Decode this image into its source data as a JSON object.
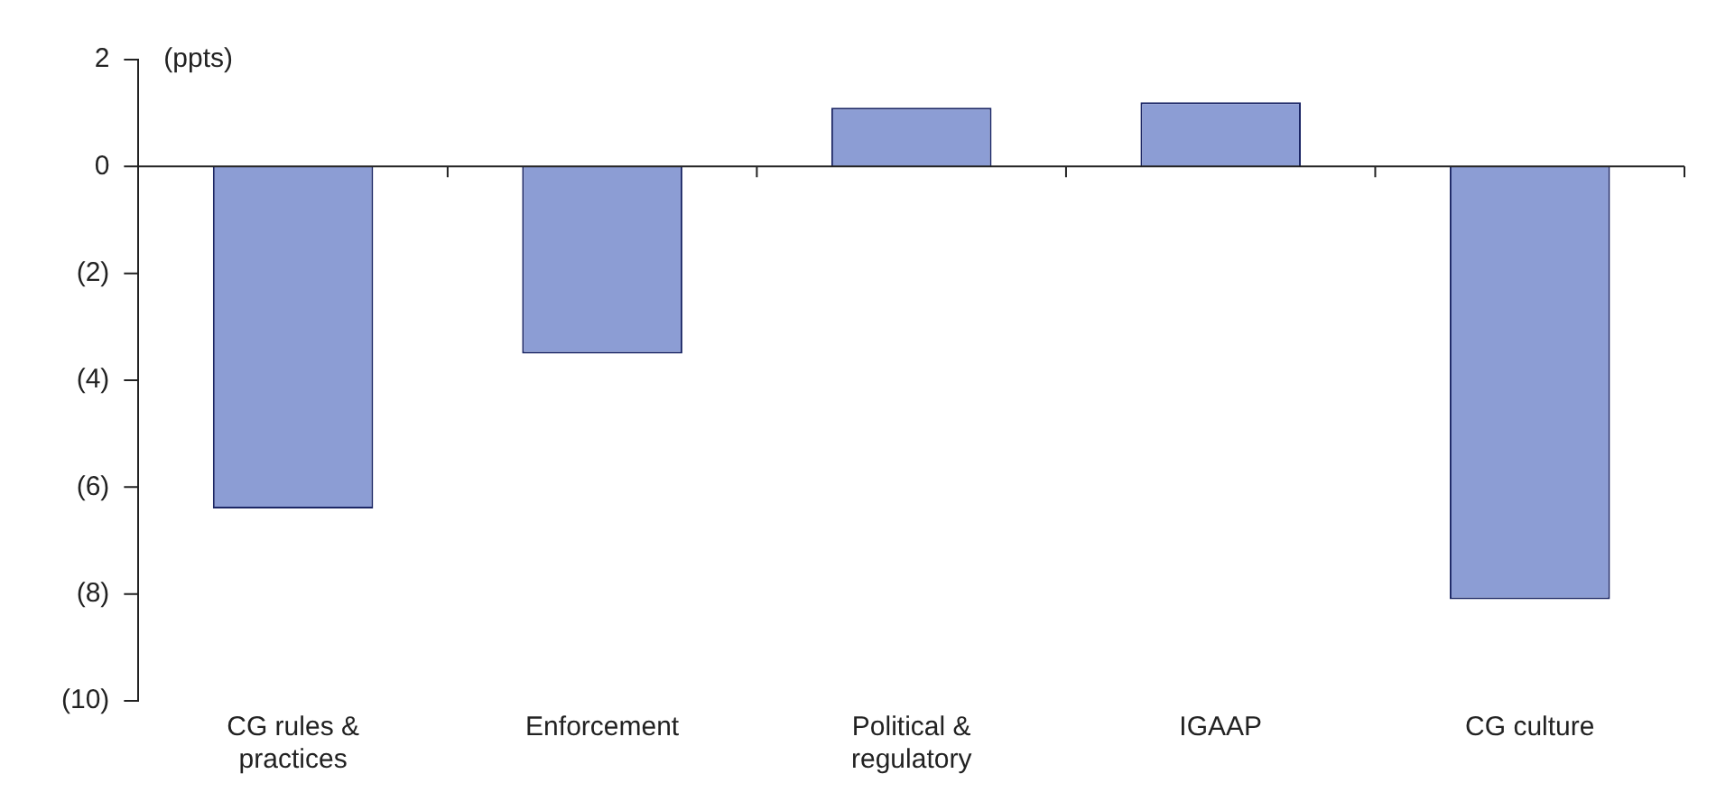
{
  "chart_data": {
    "type": "bar",
    "ylabel": "(ppts)",
    "categories": [
      "CG rules & practices",
      "Enforcement",
      "Political & regulatory",
      "IGAAP",
      "CG culture"
    ],
    "values": [
      -6.4,
      -3.5,
      1.1,
      1.2,
      -8.1
    ],
    "color": "#8c9dd4",
    "ylim": [
      -10,
      2
    ],
    "yticks": [
      {
        "value": -10,
        "label": "(10)"
      },
      {
        "value": -8,
        "label": "(8)"
      },
      {
        "value": -6,
        "label": "(6)"
      },
      {
        "value": -4,
        "label": "(4)"
      },
      {
        "value": -2,
        "label": "(2)"
      },
      0,
      2
    ],
    "grid": false,
    "ref_lines": [
      {
        "axis": "y",
        "value": 0,
        "color": "#222222"
      }
    ]
  }
}
